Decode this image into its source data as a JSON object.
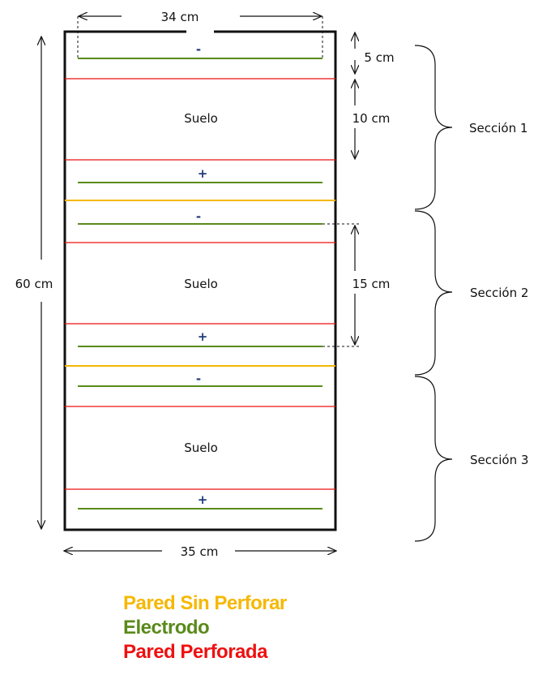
{
  "colors": {
    "pared_sin_perforar": "#f5b800",
    "electrodo": "#5a8a1a",
    "pared_perforada": "#ee1111",
    "outline": "#111111",
    "sign": "#1f3a78"
  },
  "dimensions": {
    "top_width": "34 cm",
    "bottom_width": "35 cm",
    "height": "60 cm",
    "gap_small": "5 cm",
    "gap_medium": "10 cm",
    "gap_large": "15 cm"
  },
  "soil_label": "Suelo",
  "sections": [
    "Sección 1",
    "Sección 2",
    "Sección 3"
  ],
  "electrode_signs": [
    "-",
    "+",
    "-",
    "+",
    "-",
    "+"
  ],
  "legend": {
    "pared_sin_perforar": "Pared Sin Perforar",
    "electrodo": "Electrodo",
    "pared_perforada": "Pared Perforada"
  }
}
